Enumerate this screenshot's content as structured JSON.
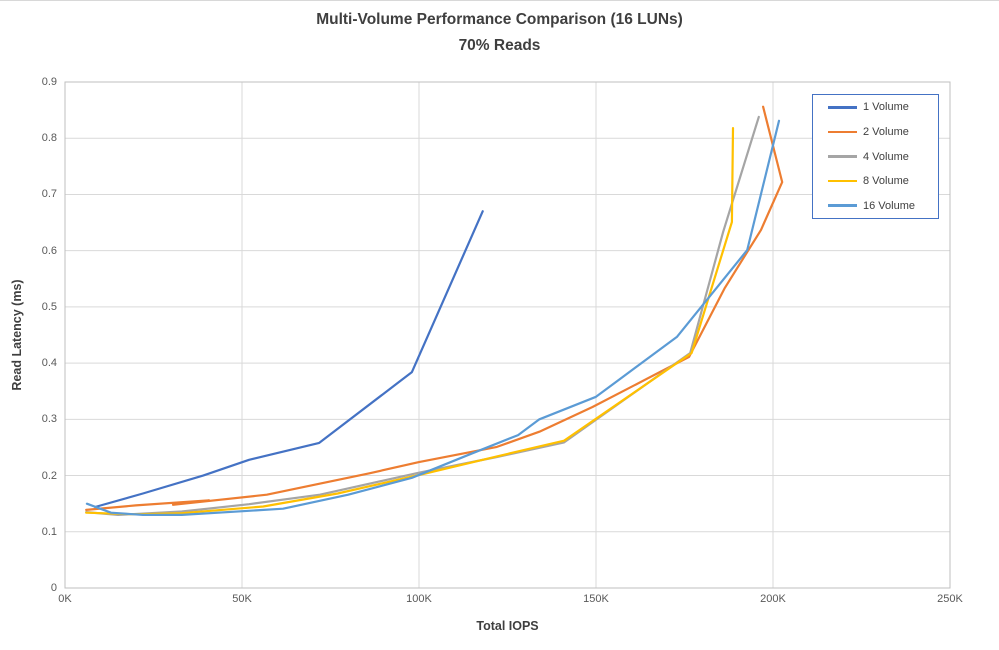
{
  "palette": {
    "gridline": "#d9d9d9",
    "plot_border": "#bfbfbf",
    "legend_border": "#4472c4",
    "title_text": "#3f3f3f",
    "tick_text": "#595959"
  },
  "legend": {
    "position": "top-right",
    "border_color": "#4472c4"
  },
  "chart_data": {
    "type": "line",
    "title": "Multi-Volume Performance Comparison (16 LUNs)",
    "subtitle": "70% Reads",
    "xlabel": "Total IOPS",
    "ylabel": "Read Latency (ms)",
    "xlim": [
      0,
      250000
    ],
    "ylim": [
      0,
      0.9
    ],
    "grid": true,
    "legend_position": "top-right",
    "x_ticks": [
      {
        "label": "0K",
        "value": 0
      },
      {
        "label": "50K",
        "value": 50000
      },
      {
        "label": "100K",
        "value": 100000
      },
      {
        "label": "150K",
        "value": 150000
      },
      {
        "label": "200K",
        "value": 200000
      },
      {
        "label": "250K",
        "value": 250000
      }
    ],
    "y_ticks": [
      {
        "label": "0",
        "value": 0
      },
      {
        "label": "0.1",
        "value": 0.1
      },
      {
        "label": "0.2",
        "value": 0.2
      },
      {
        "label": "0.3",
        "value": 0.3
      },
      {
        "label": "0.4",
        "value": 0.4
      },
      {
        "label": "0.5",
        "value": 0.5
      },
      {
        "label": "0.6",
        "value": 0.6
      },
      {
        "label": "0.7",
        "value": 0.7
      },
      {
        "label": "0.8",
        "value": 0.8
      },
      {
        "label": "0.9",
        "value": 0.9
      }
    ],
    "series": [
      {
        "name": "1 Volume",
        "color": "#4472c4",
        "points": [
          [
            8500,
            0.144
          ],
          [
            22000,
            0.168
          ],
          [
            39000,
            0.2
          ],
          [
            52000,
            0.228
          ],
          [
            71800,
            0.258
          ],
          [
            98000,
            0.384
          ],
          [
            118000,
            0.67
          ]
        ]
      },
      {
        "name": "2 Volume",
        "color": "#ed7d31",
        "points": [
          [
            6000,
            0.139
          ],
          [
            20000,
            0.147
          ],
          [
            40700,
            0.156
          ],
          [
            30500,
            0.148
          ],
          [
            57000,
            0.166
          ],
          [
            86000,
            0.204
          ],
          [
            100000,
            0.224
          ],
          [
            122000,
            0.251
          ],
          [
            134000,
            0.278
          ],
          [
            149000,
            0.322
          ],
          [
            176300,
            0.411
          ],
          [
            186400,
            0.534
          ],
          [
            196600,
            0.637
          ],
          [
            202600,
            0.722
          ],
          [
            197200,
            0.856
          ]
        ]
      },
      {
        "name": "4 Volume",
        "color": "#a5a5a5",
        "points": [
          [
            6000,
            0.135
          ],
          [
            15000,
            0.13
          ],
          [
            33000,
            0.136
          ],
          [
            52000,
            0.149
          ],
          [
            72000,
            0.166
          ],
          [
            100000,
            0.205
          ],
          [
            122000,
            0.233
          ],
          [
            141000,
            0.259
          ],
          [
            176600,
            0.418
          ],
          [
            185900,
            0.633
          ],
          [
            196000,
            0.838
          ]
        ]
      },
      {
        "name": "8 Volume",
        "color": "#ffc000",
        "points": [
          [
            6000,
            0.134
          ],
          [
            20000,
            0.131
          ],
          [
            33000,
            0.133
          ],
          [
            56000,
            0.145
          ],
          [
            77000,
            0.168
          ],
          [
            100000,
            0.201
          ],
          [
            122000,
            0.234
          ],
          [
            141000,
            0.262
          ],
          [
            177000,
            0.418
          ],
          [
            188400,
            0.651
          ],
          [
            188700,
            0.818
          ]
        ]
      },
      {
        "name": "16 Volume",
        "color": "#5b9bd5",
        "points": [
          [
            6200,
            0.15
          ],
          [
            13000,
            0.134
          ],
          [
            22000,
            0.13
          ],
          [
            33000,
            0.13
          ],
          [
            61600,
            0.141
          ],
          [
            80000,
            0.166
          ],
          [
            98000,
            0.196
          ],
          [
            114000,
            0.237
          ],
          [
            128000,
            0.272
          ],
          [
            134000,
            0.3
          ],
          [
            150000,
            0.34
          ],
          [
            172900,
            0.447
          ],
          [
            192700,
            0.601
          ],
          [
            201700,
            0.831
          ]
        ]
      }
    ]
  }
}
